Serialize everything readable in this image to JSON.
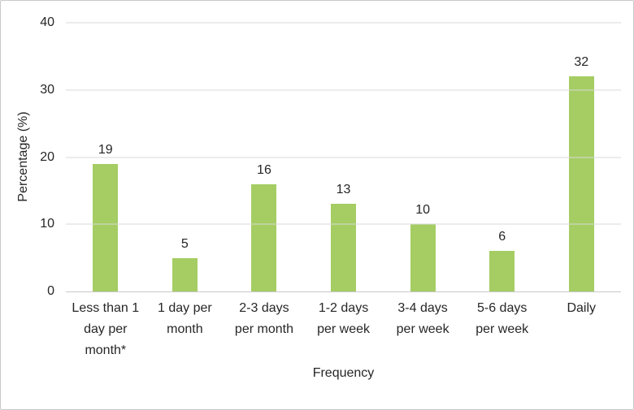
{
  "chart_data": {
    "type": "bar",
    "title": "",
    "xlabel": "Frequency",
    "ylabel": "Percentage (%)",
    "categories": [
      "Less than 1 day per month*",
      "1 day per month",
      "2-3 days per month",
      "1-2 days per week",
      "3-4 days per week",
      "5-6 days per week",
      "Daily"
    ],
    "category_lines": [
      [
        "Less than 1",
        "day per",
        "month*"
      ],
      [
        "1 day per",
        "month"
      ],
      [
        "2-3 days",
        "per month"
      ],
      [
        "1-2 days",
        "per week"
      ],
      [
        "3-4 days",
        "per week"
      ],
      [
        "5-6 days",
        "per week"
      ],
      [
        "Daily"
      ]
    ],
    "values": [
      19,
      5,
      16,
      13,
      10,
      6,
      32
    ],
    "ylim": [
      0,
      40
    ],
    "yticks": [
      0,
      10,
      20,
      30,
      40
    ],
    "grid": true,
    "legend": "none",
    "bar_color": "#A5CD63",
    "gridline_color": "#D9D9D9",
    "baseline_color": "#C9C9C9",
    "label_color": "#262626",
    "frame_border_color": "#C9C9C9"
  }
}
